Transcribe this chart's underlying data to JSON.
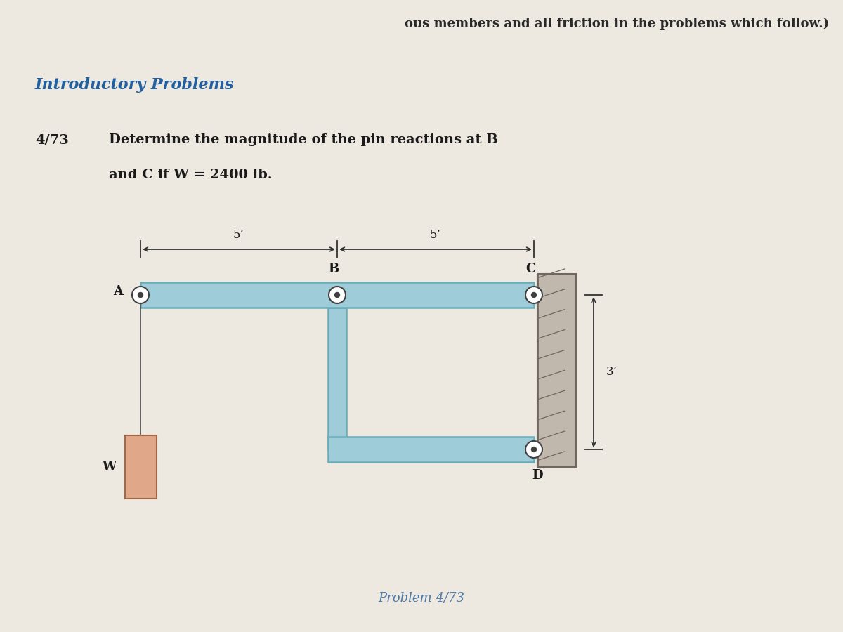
{
  "bg_color": "#e8e2d8",
  "text_color": "#1a1a1a",
  "header_text": "ous members and all friction in the problems which follow.)",
  "section_title": "Introductory Problems",
  "problem_number": "4/73",
  "problem_text_line1": "Determine the magnitude of the pin reactions at B",
  "problem_text_line2": "and C if W = 2400 lb.",
  "caption": "Problem 4/73",
  "caption_color": "#4a7aaa",
  "dim_5ft_left": "5’",
  "dim_5ft_right": "5’",
  "dim_3ft": "3’",
  "label_A": "A",
  "label_B": "B",
  "label_C": "C",
  "label_D": "D",
  "label_W": "W",
  "beam_color": "#9eccd8",
  "beam_edge_color": "#6aabb8",
  "wall_color": "#c0b8ac",
  "wall_edge_color": "#706860",
  "weight_fill_color": "#e0a888",
  "weight_edge_color": "#a06848",
  "pin_fill_color": "#ffffff",
  "pin_edge_color": "#404040",
  "rope_color": "#555555",
  "arrow_color": "#333333",
  "header_color": "#2a2a2a",
  "section_color": "#2060a0",
  "problem_num_color": "#1a1a1a"
}
